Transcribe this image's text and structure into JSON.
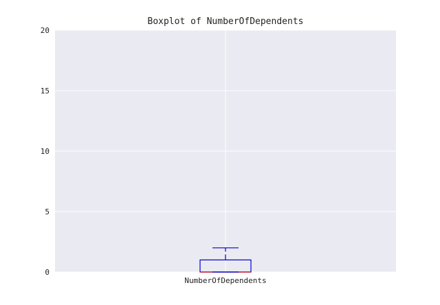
{
  "chart_data": {
    "type": "boxplot",
    "title": "Boxplot of NumberOfDependents",
    "xlabel": "",
    "ylabel": "",
    "categories": [
      "NumberOfDependents"
    ],
    "ylim": [
      0,
      20
    ],
    "yticks": [
      0,
      5,
      10,
      15,
      20
    ],
    "ytick_labels": [
      "0",
      "5",
      "10",
      "15",
      "20"
    ],
    "grid": true,
    "boxes": [
      {
        "name": "NumberOfDependents",
        "q1": 0,
        "median": 0,
        "q3": 1,
        "whisker_low": 0,
        "whisker_high": 2
      }
    ],
    "colors": {
      "plot_background": "#eaeaf2",
      "grid": "#ffffff",
      "box": "#0000cc",
      "median": "#cc0000",
      "text": "#222222"
    }
  }
}
